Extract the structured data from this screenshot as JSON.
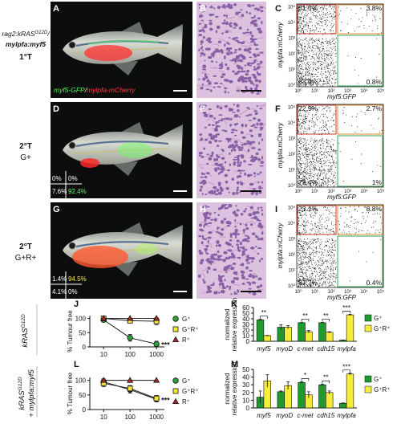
{
  "panels": {
    "letters": [
      "A",
      "B",
      "C",
      "D",
      "E",
      "F",
      "G",
      "H",
      "I",
      "J",
      "K",
      "L",
      "M"
    ],
    "row_labels": [
      {
        "line1": "rag2:kRAS",
        "line1_sup": "G12D",
        "line1_end": "/",
        "line2": "mylpfa:myf5",
        "line3": "1°T"
      },
      {
        "line1": "2°T",
        "line2": "G+"
      },
      {
        "line1": "2°T",
        "line2": "G+R+"
      }
    ],
    "photo_A_caption": {
      "green": "myf5-GFP",
      "slash": "/",
      "red": "mylpfa-mCherry"
    },
    "photo_D_overlay": [
      "0%",
      "0%",
      "7.6%",
      "92.4%"
    ],
    "photo_G_overlay": [
      "1.4%",
      "94.5%",
      "4.1%",
      "0%"
    ],
    "flow": [
      {
        "quadrants": [
          "31.5%",
          "3.8%",
          "63.9%",
          "0.8%"
        ]
      },
      {
        "quadrants": [
          "22.9%",
          "2.7%",
          "73.4%",
          "1%"
        ]
      },
      {
        "quadrants": [
          "23.1%",
          "8.8%",
          "67.7%",
          "0.4%"
        ]
      }
    ],
    "flow_ylabel": "mylpfa:mCherry",
    "flow_xlabel": "myf5:GFP",
    "flow_ticks": [
      "10⁰",
      "10¹",
      "10²",
      "10³",
      "10⁴",
      "10⁵"
    ]
  },
  "chart_data": [
    {
      "type": "line",
      "side_label": {
        "text": "kRAS",
        "sup": "G12D"
      },
      "ylabel": "% Tumour free",
      "x": [
        10,
        100,
        1000
      ],
      "xlim": [
        3,
        2000
      ],
      "xticks": [
        10,
        100,
        1000
      ],
      "xscale": "log",
      "ylim": [
        0,
        110
      ],
      "yticks": [
        0,
        50,
        100
      ],
      "series": [
        {
          "name": "G⁺",
          "color": "#2f9e3b",
          "marker": "circle",
          "values": [
            95,
            32,
            10
          ],
          "errors": [
            8,
            12,
            10
          ]
        },
        {
          "name": "G⁺R⁺",
          "color": "#f5e83a",
          "marker": "square",
          "values": [
            100,
            92,
            90
          ],
          "errors": [
            3,
            6,
            12
          ]
        },
        {
          "name": "R⁺",
          "color": "#a8282a",
          "marker": "triangle",
          "values": [
            100,
            100,
            100
          ]
        }
      ],
      "annotation": "***"
    },
    {
      "type": "bar",
      "ylabel_lines": [
        "normalized",
        "relative expression"
      ],
      "categories": [
        "myf5",
        "myoD",
        "c-met",
        "cdh15",
        "mylpfa"
      ],
      "ylim": [
        0,
        60
      ],
      "yticks": [
        0,
        10,
        20,
        30,
        40,
        50,
        60
      ],
      "series": [
        {
          "name": "G⁺",
          "color": "#1f9a2f",
          "values": [
            38,
            25,
            33,
            33,
            2
          ],
          "errors": [
            1,
            4,
            0.5,
            0.5,
            0.3
          ]
        },
        {
          "name": "G⁺R⁺",
          "color": "#f7ec3a",
          "values": [
            10,
            25,
            17,
            16,
            47
          ],
          "errors": [
            0.5,
            3,
            2,
            1,
            1
          ]
        }
      ],
      "significance": [
        "**",
        null,
        "**",
        "**",
        "***"
      ]
    },
    {
      "type": "line",
      "side_label": {
        "text": "kRAS",
        "sup": "G12D",
        "line2": "+ mylpfa:myf5"
      },
      "ylabel": "% Tumour free",
      "x": [
        10,
        100,
        1000
      ],
      "xlim": [
        3,
        2000
      ],
      "xticks": [
        10,
        100,
        1000
      ],
      "xscale": "log",
      "ylim": [
        0,
        110
      ],
      "yticks": [
        0,
        50,
        100
      ],
      "series": [
        {
          "name": "G⁺",
          "color": "#2f9e3b",
          "marker": "circle",
          "values": [
            95,
            68,
            35
          ],
          "errors": [
            10,
            12,
            8
          ]
        },
        {
          "name": "G⁺R⁺",
          "color": "#f5e83a",
          "marker": "square",
          "values": [
            90,
            72,
            38
          ],
          "errors": [
            12,
            10,
            10
          ]
        },
        {
          "name": "R⁺",
          "color": "#a8282a",
          "marker": "triangle",
          "values": [
            100,
            100,
            100
          ]
        }
      ],
      "annotation": "***"
    },
    {
      "type": "bar",
      "ylabel_lines": [
        "normalized",
        "relative expression"
      ],
      "categories": [
        "myf5",
        "myoD",
        "c-met",
        "cdh15",
        "mylpfa"
      ],
      "ylim": [
        0,
        50
      ],
      "yticks": [
        0,
        10,
        20,
        30,
        40,
        50
      ],
      "series": [
        {
          "name": "G⁺",
          "color": "#1f9a2f",
          "values": [
            14,
            21,
            33,
            30,
            6
          ],
          "errors": [
            8,
            1,
            1,
            1,
            0.5
          ]
        },
        {
          "name": "G⁺R⁺",
          "color": "#f7ec3a",
          "values": [
            35,
            29,
            17,
            20,
            44
          ],
          "errors": [
            8,
            5,
            4,
            2,
            1
          ]
        }
      ],
      "significance": [
        null,
        null,
        "*",
        "**",
        "***"
      ]
    }
  ]
}
